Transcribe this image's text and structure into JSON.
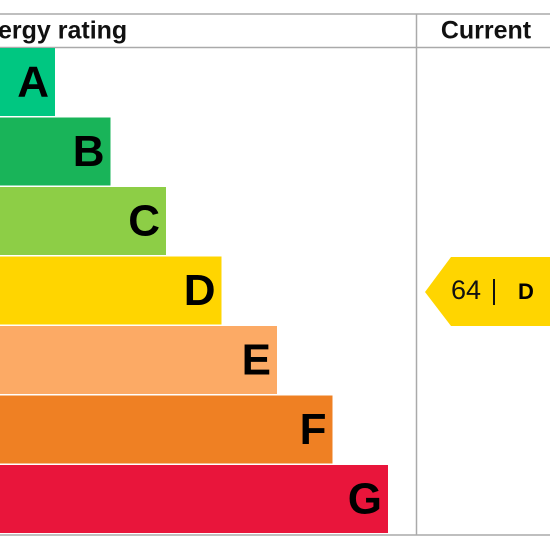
{
  "header": {
    "title": "ergy rating",
    "current": "Current"
  },
  "bands": [
    {
      "letter": "A",
      "color": "#00c781"
    },
    {
      "letter": "B",
      "color": "#19b459"
    },
    {
      "letter": "C",
      "color": "#8dce46"
    },
    {
      "letter": "D",
      "color": "#ffd500"
    },
    {
      "letter": "E",
      "color": "#fcaa65"
    },
    {
      "letter": "F",
      "color": "#ef8023"
    },
    {
      "letter": "G",
      "color": "#e9153b"
    }
  ],
  "current": {
    "score": 64,
    "band": "D",
    "color": "#ffd500"
  }
}
